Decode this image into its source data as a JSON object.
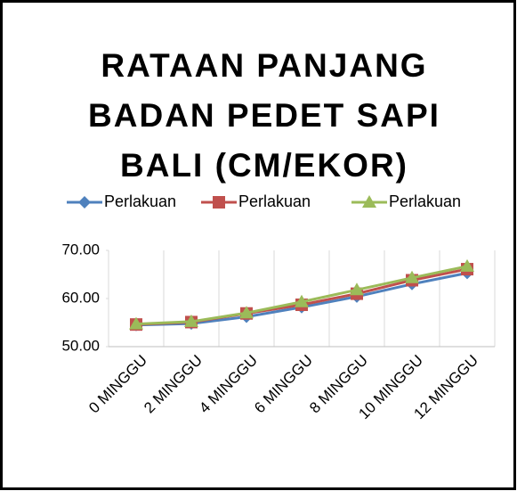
{
  "chart_data": {
    "type": "line",
    "title": [
      "RATAAN PANJANG",
      "BADAN PEDET SAPI",
      "BALI (CM/EKOR)"
    ],
    "categories": [
      "0 MINGGU",
      "2 MINGGU",
      "4 MINGGU",
      "6 MINGGU",
      "8 MINGGU",
      "10 MINGGU",
      "12 MINGGU"
    ],
    "series": [
      {
        "name": "Perlakuan",
        "color": "#4f81bd",
        "marker": "diamond",
        "values": [
          54.5,
          54.8,
          56.2,
          58.2,
          60.4,
          63.0,
          65.3
        ]
      },
      {
        "name": "Perlakuan",
        "color": "#c0504d",
        "marker": "square",
        "values": [
          54.6,
          55.1,
          56.9,
          58.7,
          61.0,
          63.8,
          66.1
        ]
      },
      {
        "name": "Perlakuan",
        "color": "#9bbb59",
        "marker": "triangle",
        "values": [
          54.7,
          55.2,
          57.0,
          59.3,
          61.8,
          64.3,
          66.7
        ]
      }
    ],
    "ylim": [
      50,
      70
    ],
    "yticks": [
      {
        "value": 70,
        "label": "70.00"
      },
      {
        "value": 60,
        "label": "60.00"
      },
      {
        "value": 50,
        "label": "50.00"
      }
    ],
    "legend": "top",
    "grid": "vertical"
  }
}
